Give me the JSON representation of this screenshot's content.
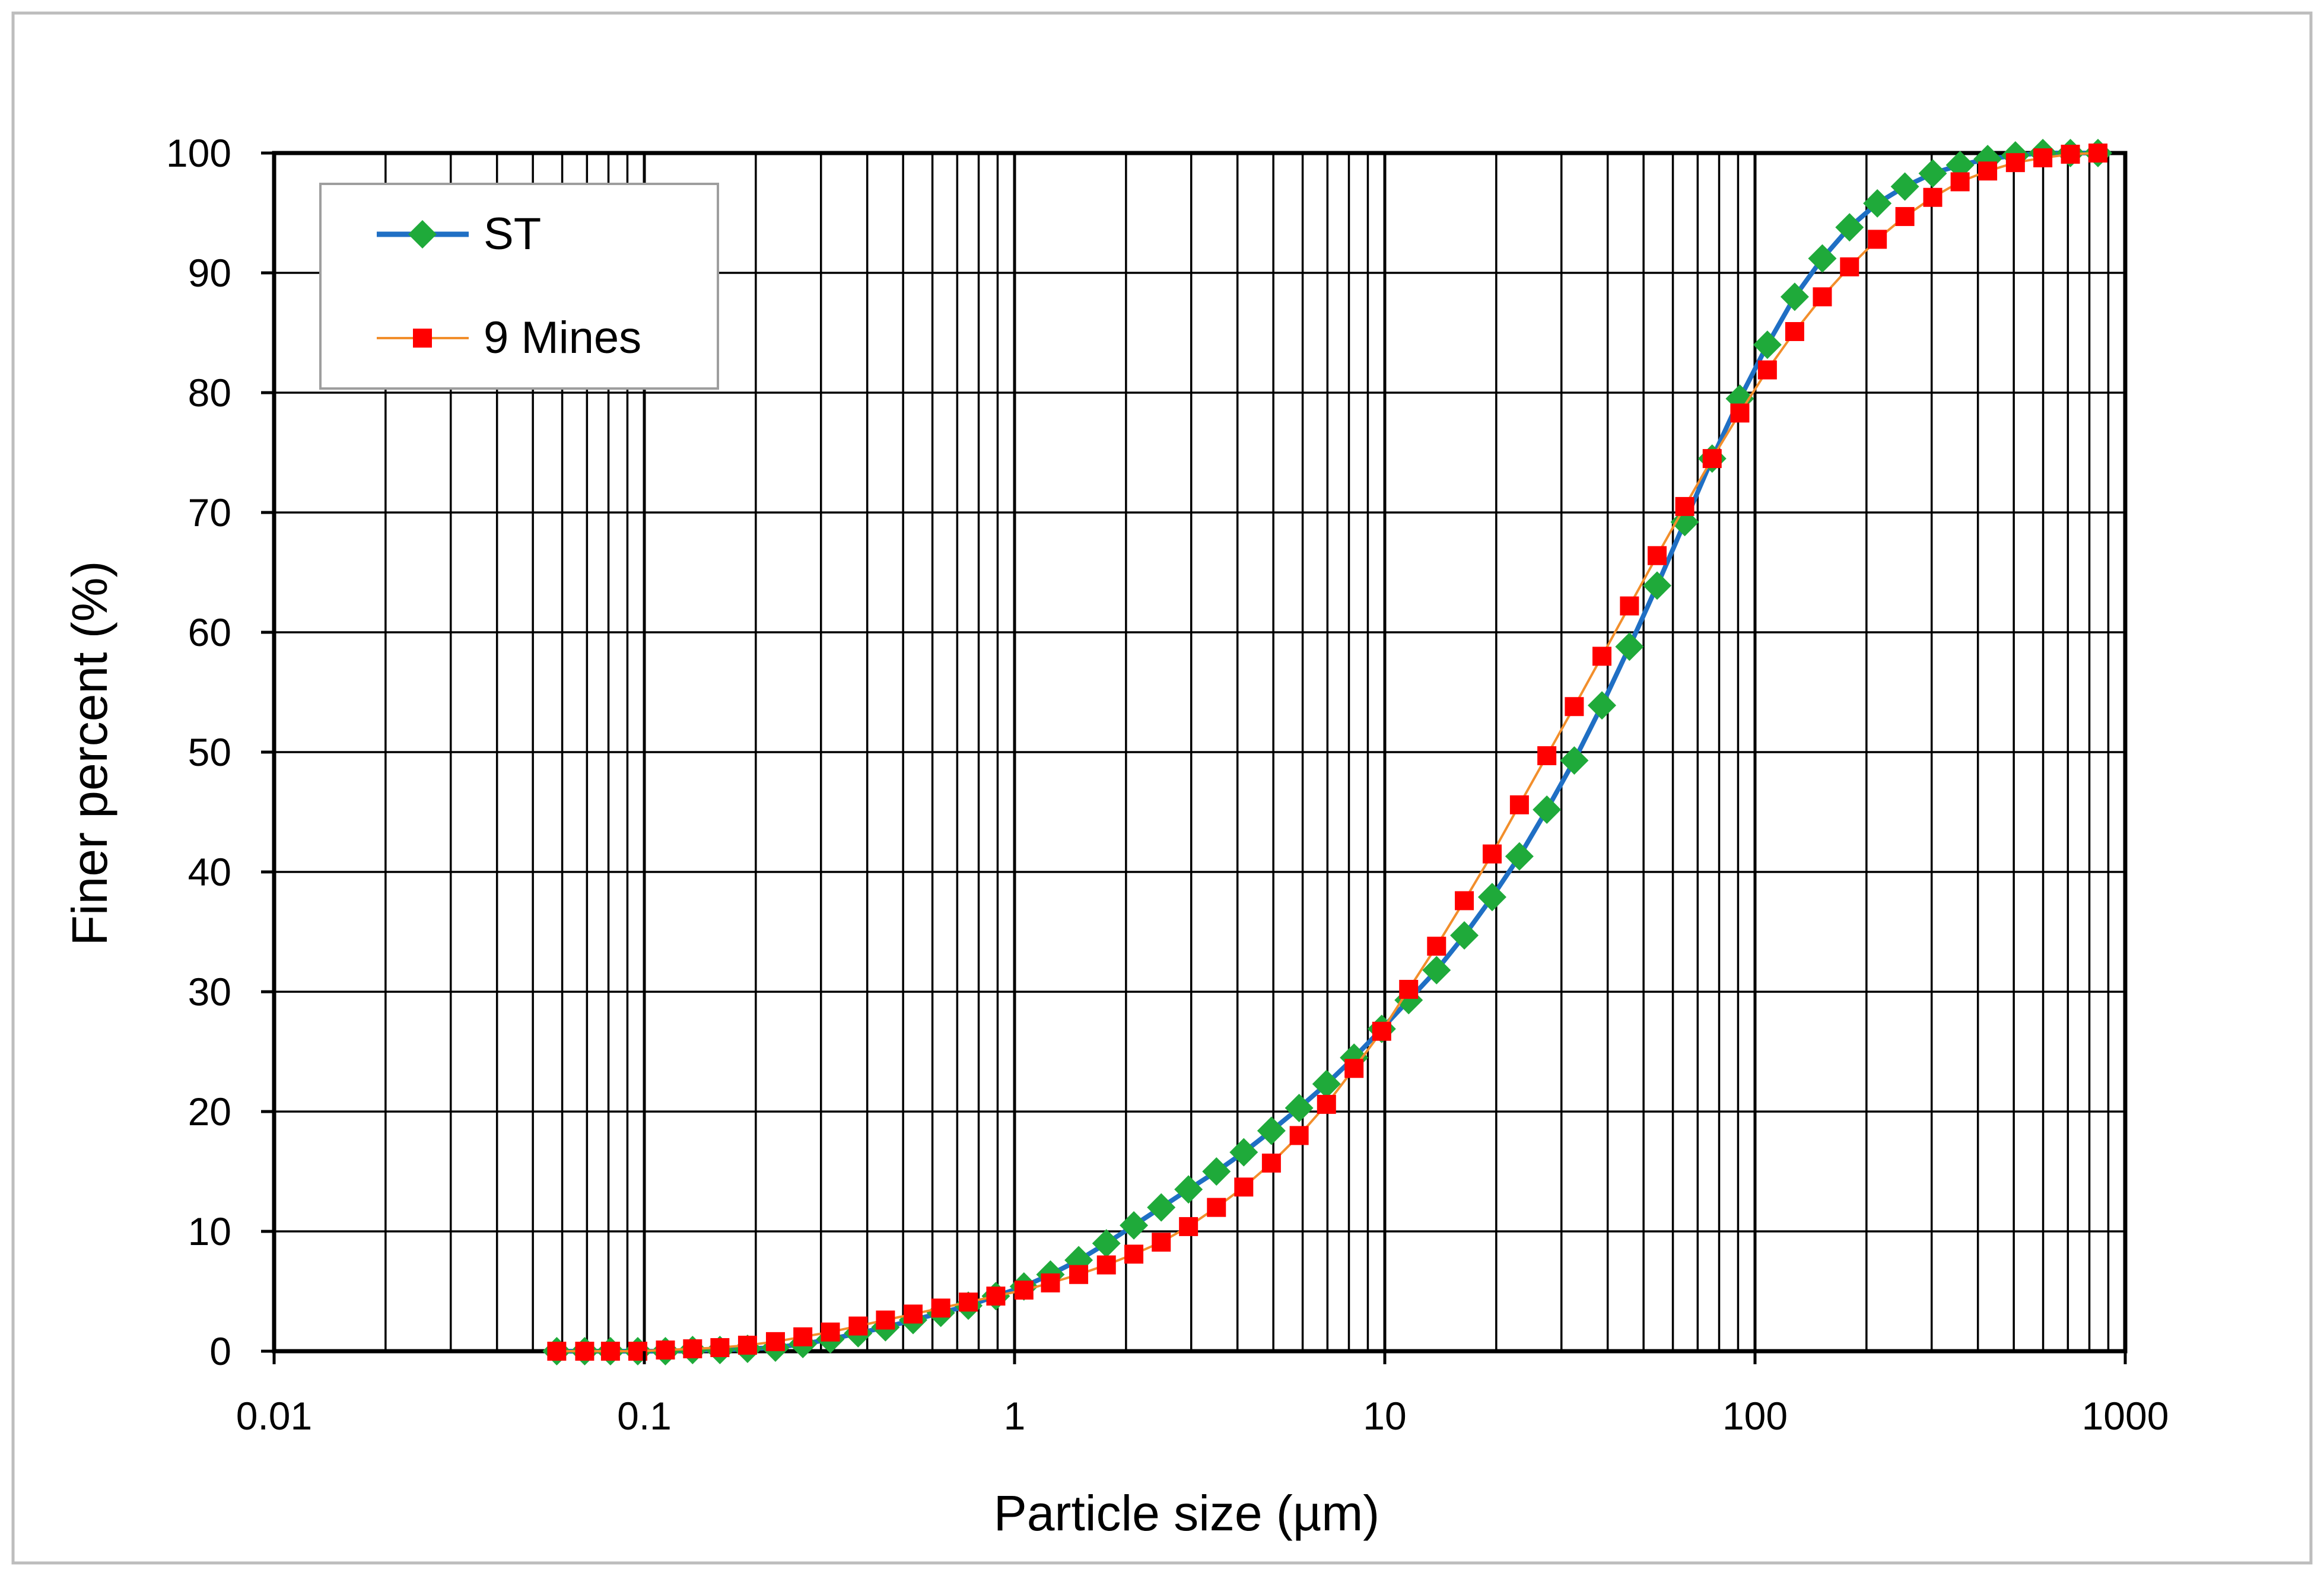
{
  "chart_data": {
    "type": "line",
    "xlabel": "Particle size (µm)",
    "ylabel": "Finer percent (%)",
    "x_scale": "log",
    "xlim": [
      0.01,
      1000
    ],
    "ylim": [
      0,
      100
    ],
    "x_tick_labels": [
      "0.01",
      "0.1",
      "1",
      "10",
      "100",
      "1000"
    ],
    "y_tick_labels": [
      "0",
      "10",
      "20",
      "30",
      "40",
      "50",
      "60",
      "70",
      "80",
      "90",
      "100"
    ],
    "grid": true,
    "legend_position": "top-left",
    "series": [
      {
        "name": "ST",
        "color": "#1f6fc4",
        "marker": "diamond",
        "marker_color": "#1faa3a",
        "x": [
          0.058,
          0.069,
          0.081,
          0.096,
          0.114,
          0.135,
          0.16,
          0.19,
          0.226,
          0.268,
          0.318,
          0.378,
          0.448,
          0.532,
          0.632,
          0.75,
          0.89,
          1.06,
          1.25,
          1.49,
          1.77,
          2.1,
          2.49,
          2.95,
          3.51,
          4.16,
          4.94,
          5.87,
          6.96,
          8.26,
          9.81,
          11.6,
          13.8,
          16.4,
          19.5,
          23.1,
          27.4,
          32.5,
          38.6,
          45.8,
          54.4,
          64.6,
          76.6,
          91,
          108,
          128,
          152,
          180,
          214,
          254,
          302,
          358,
          425,
          505,
          599,
          711,
          844
        ],
        "values": [
          0,
          0,
          0,
          0,
          0,
          0.1,
          0.1,
          0.2,
          0.3,
          0.6,
          1.0,
          1.5,
          2.0,
          2.6,
          3.2,
          3.8,
          4.6,
          5.4,
          6.4,
          7.6,
          9.0,
          10.5,
          12.0,
          13.5,
          15.0,
          16.6,
          18.4,
          20.3,
          22.3,
          24.5,
          26.9,
          29.3,
          31.8,
          34.7,
          37.9,
          41.3,
          45.2,
          49.3,
          53.9,
          58.8,
          63.9,
          69.2,
          74.5,
          79.5,
          84.0,
          88.0,
          91.2,
          93.8,
          95.8,
          97.2,
          98.3,
          99.0,
          99.5,
          99.8,
          100,
          100,
          100
        ]
      },
      {
        "name": "9 Mines",
        "color": "#f28e2b",
        "marker": "square",
        "marker_color": "#ff0000",
        "x": [
          0.058,
          0.069,
          0.081,
          0.096,
          0.114,
          0.135,
          0.16,
          0.19,
          0.226,
          0.268,
          0.318,
          0.378,
          0.448,
          0.532,
          0.632,
          0.75,
          0.89,
          1.06,
          1.25,
          1.49,
          1.77,
          2.1,
          2.49,
          2.95,
          3.51,
          4.16,
          4.94,
          5.87,
          6.96,
          8.26,
          9.81,
          11.6,
          13.8,
          16.4,
          19.5,
          23.1,
          27.4,
          32.5,
          38.6,
          45.8,
          54.4,
          64.6,
          76.6,
          91,
          108,
          128,
          152,
          180,
          214,
          254,
          302,
          358,
          425,
          505,
          599,
          711,
          844
        ],
        "values": [
          0,
          0,
          0,
          0,
          0.1,
          0.2,
          0.3,
          0.5,
          0.8,
          1.2,
          1.6,
          2.1,
          2.6,
          3.1,
          3.6,
          4.1,
          4.6,
          5.1,
          5.7,
          6.4,
          7.2,
          8.1,
          9.1,
          10.4,
          12.0,
          13.7,
          15.7,
          18.0,
          20.6,
          23.6,
          26.7,
          30.2,
          33.8,
          37.6,
          41.5,
          45.6,
          49.7,
          53.8,
          58.0,
          62.2,
          66.4,
          70.5,
          74.5,
          78.3,
          81.9,
          85.1,
          88.0,
          90.5,
          92.8,
          94.7,
          96.3,
          97.6,
          98.5,
          99.2,
          99.6,
          99.9,
          100
        ]
      }
    ]
  }
}
